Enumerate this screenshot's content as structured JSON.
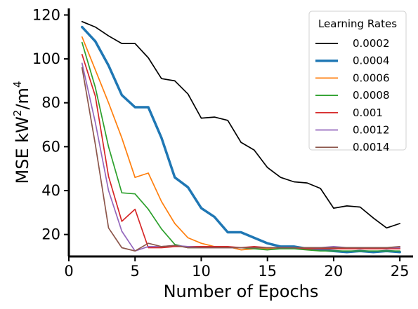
{
  "chart_data": {
    "type": "line",
    "xlabel": "Number of Epochs",
    "ylabel_text": "MSE kW",
    "ylabel_sup1": "2",
    "ylabel_mid": "/m",
    "ylabel_sup2": "4",
    "xlim": [
      0,
      26
    ],
    "ylim": [
      10,
      123
    ],
    "xticks": [
      0,
      5,
      10,
      15,
      20,
      25
    ],
    "yticks": [
      20,
      40,
      60,
      80,
      100,
      120
    ],
    "grid": false,
    "legend": {
      "title": "Learning Rates",
      "placement": "top-right"
    },
    "x": [
      1,
      2,
      3,
      4,
      5,
      6,
      7,
      8,
      9,
      10,
      11,
      12,
      13,
      14,
      15,
      16,
      17,
      18,
      19,
      20,
      21,
      22,
      23,
      24,
      25
    ],
    "series": [
      {
        "name": "0.0002",
        "color": "#000000",
        "emphasis": false,
        "values": [
          117,
          114.5,
          110.5,
          107,
          107,
          100.5,
          91,
          90,
          84,
          73,
          73.5,
          72,
          62,
          58.5,
          50.5,
          46,
          44,
          43.5,
          41,
          32,
          33,
          32.5,
          27.5,
          23,
          25
        ]
      },
      {
        "name": "0.0004",
        "color": "#1f77b4",
        "emphasis": true,
        "values": [
          114.5,
          108,
          97,
          83.5,
          78,
          78,
          64,
          46,
          41.5,
          32,
          28,
          21,
          21,
          18.5,
          16,
          14.5,
          14.5,
          13.5,
          13,
          12.5,
          12,
          12.5,
          12,
          12.5,
          12
        ]
      },
      {
        "name": "0.0006",
        "color": "#ff7f0e",
        "emphasis": false,
        "values": [
          110,
          95,
          80,
          64,
          46,
          48,
          35,
          25,
          18.5,
          16,
          14.5,
          14.5,
          13,
          13.5,
          13.5,
          13.5,
          13.5,
          13.5,
          13.5,
          13.5,
          13.5,
          13.5,
          13.5,
          13.5,
          13.5
        ]
      },
      {
        "name": "0.0008",
        "color": "#2ca02c",
        "emphasis": false,
        "values": [
          107.5,
          87,
          60,
          39,
          38.5,
          31.5,
          22.5,
          15.5,
          14,
          14,
          14,
          14,
          14,
          13.5,
          13,
          13.5,
          13.5,
          13,
          12.5,
          12.5,
          12.5,
          12.5,
          12.5,
          12.5,
          12.5
        ]
      },
      {
        "name": "0.001",
        "color": "#d62728",
        "emphasis": false,
        "values": [
          102,
          83,
          46.5,
          26,
          31.5,
          14,
          14,
          14.5,
          14.5,
          14.5,
          14.5,
          14.5,
          14,
          14.5,
          14,
          14,
          14,
          13.5,
          13.5,
          13.5,
          13.5,
          13.5,
          13.5,
          13.5,
          13.5
        ]
      },
      {
        "name": "0.0012",
        "color": "#9467bd",
        "emphasis": false,
        "values": [
          98,
          71,
          40,
          21.5,
          12.5,
          14.5,
          14.5,
          15,
          14.5,
          14,
          14,
          14,
          14,
          14,
          14,
          14,
          14,
          14,
          14,
          14.5,
          14,
          14,
          14,
          14,
          14
        ]
      },
      {
        "name": "0.0014",
        "color": "#8c564b",
        "emphasis": false,
        "values": [
          96,
          61,
          23,
          14,
          12.5,
          16,
          14.5,
          15,
          14,
          14,
          14,
          14,
          14,
          14,
          14,
          14,
          14,
          14,
          14,
          14,
          14,
          14,
          14,
          14,
          14.5
        ]
      }
    ]
  }
}
